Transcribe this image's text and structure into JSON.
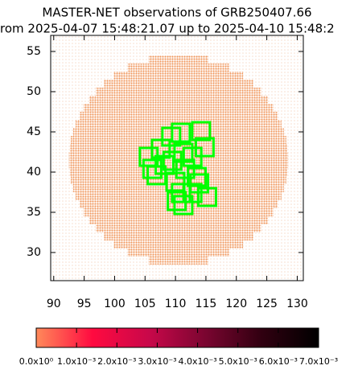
{
  "chart_data": {
    "type": "skymap",
    "title": [
      "MASTER-NET observations of GRB250407.66",
      "rom 2025-04-07 15:48:21.07 up to 2025-04-10 15:48:2"
    ],
    "xlim": [
      89.5,
      131
    ],
    "ylim": [
      26.5,
      57
    ],
    "xticks": [
      90,
      95,
      100,
      105,
      110,
      115,
      120,
      125,
      130
    ],
    "yticks": [
      30,
      35,
      40,
      45,
      50,
      55
    ],
    "map": {
      "color": "#f0985e",
      "y": [
        29,
        30,
        31,
        32,
        33,
        34,
        35,
        36,
        37,
        38,
        39,
        40,
        41,
        42,
        43,
        44,
        45,
        46,
        47,
        48,
        49,
        50,
        51,
        52,
        53,
        54
      ],
      "x_min": [
        105.6,
        102.1,
        99.9,
        98.2,
        96.9,
        95.8,
        94.9,
        94.2,
        93.6,
        93.2,
        92.8,
        92.6,
        92.5,
        92.5,
        92.6,
        92.8,
        93.2,
        93.6,
        94.2,
        94.9,
        95.8,
        96.9,
        98.2,
        99.9,
        102.1,
        105.6
      ],
      "x_max": [
        115.4,
        118.9,
        121.1,
        122.8,
        124.1,
        125.2,
        126.1,
        126.8,
        127.4,
        127.8,
        128.2,
        128.4,
        128.5,
        128.5,
        128.4,
        128.2,
        127.8,
        127.4,
        126.8,
        126.1,
        125.2,
        124.1,
        122.8,
        121.1,
        118.9,
        115.4
      ]
    },
    "fields": {
      "color": "#00ff00",
      "width": 2.9,
      "height": 2.2,
      "x": [
        105.6,
        107.6,
        109.3,
        110.9,
        114.2,
        114.8,
        106.2,
        106.9,
        109.5,
        111.3,
        112.8,
        111.6,
        110.0,
        113.5,
        110.9,
        112.8,
        115.2,
        111.3,
        110.2,
        113.9,
        108.2
      ],
      "y": [
        41.9,
        42.9,
        44.4,
        44.9,
        45.1,
        43.1,
        40.4,
        39.6,
        41.4,
        42.4,
        41.9,
        40.4,
        38.8,
        39.4,
        37.4,
        37.4,
        36.9,
        35.9,
        36.4,
        38.6,
        40.9
      ]
    },
    "colorbar": {
      "lim": [
        0,
        0.007
      ],
      "colors": [
        "#ff8a5a",
        "#ff0a40",
        "#c8084a",
        "#7a0530",
        "#300010",
        "#000000"
      ],
      "ticks": [
        {
          "value": 0,
          "label": "0.0x10⁰"
        },
        {
          "value": 0.001,
          "label": "1.0x10⁻³"
        },
        {
          "value": 0.002,
          "label": "2.0x10⁻³"
        },
        {
          "value": 0.003,
          "label": "3.0x10⁻³"
        },
        {
          "value": 0.004,
          "label": "4.0x10⁻³"
        },
        {
          "value": 0.005,
          "label": "5.0x10⁻³"
        },
        {
          "value": 0.006,
          "label": "6.0x10⁻³"
        },
        {
          "value": 0.007,
          "label": "7.0x10⁻³"
        }
      ]
    }
  }
}
